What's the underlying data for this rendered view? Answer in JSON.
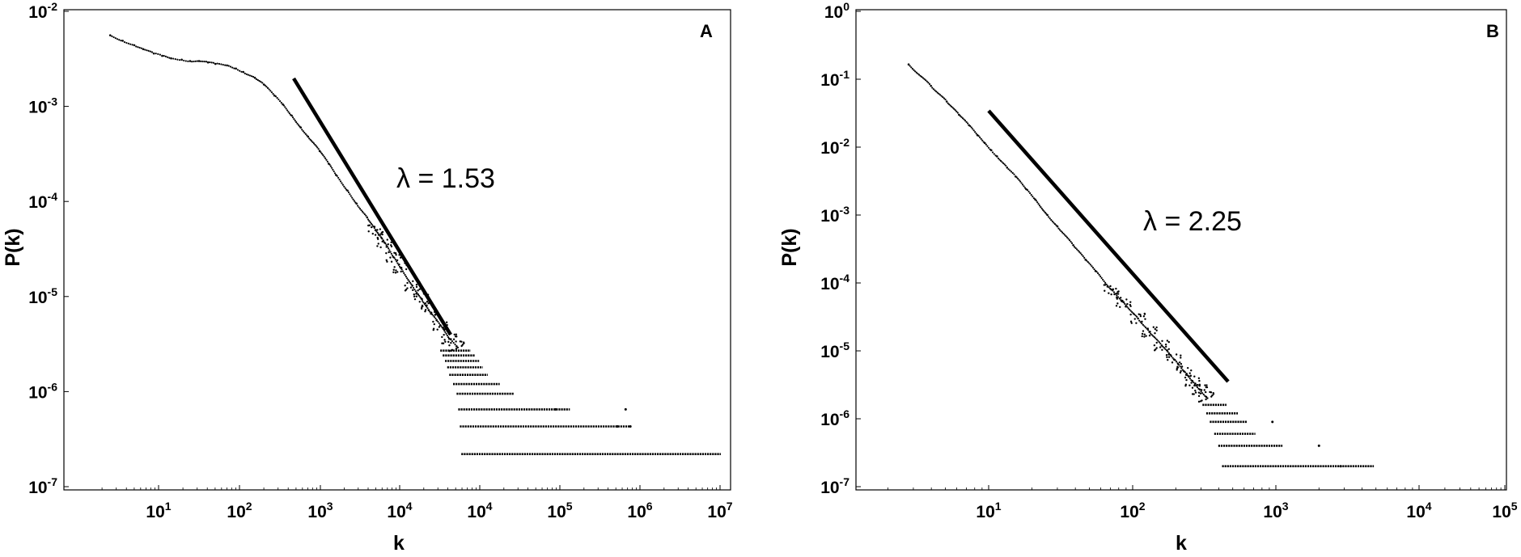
{
  "chart_data": [
    {
      "type": "scatter",
      "panel_label": "A",
      "xlabel": "k",
      "ylabel": "P(k)",
      "x_scale": "log",
      "y_scale": "log",
      "xlim": [
        1,
        10000000
      ],
      "ylim": [
        1e-07,
        0.01
      ],
      "x_ticks": [
        {
          "base": "10",
          "exp": "1"
        },
        {
          "base": "10",
          "exp": "2"
        },
        {
          "base": "10",
          "exp": "3"
        },
        {
          "base": "10",
          "exp": "4"
        },
        {
          "base": "10",
          "exp": "4"
        },
        {
          "base": "10",
          "exp": "5"
        },
        {
          "base": "10",
          "exp": "6"
        },
        {
          "base": "10",
          "exp": "7"
        }
      ],
      "y_ticks": [
        {
          "base": "10",
          "exp": "-7"
        },
        {
          "base": "10",
          "exp": "-6"
        },
        {
          "base": "10",
          "exp": "-5"
        },
        {
          "base": "10",
          "exp": "-4"
        },
        {
          "base": "10",
          "exp": "-3"
        },
        {
          "base": "10",
          "exp": "-2"
        }
      ],
      "annotation": "λ = 1.53",
      "fit_line": {
        "slope": -1.53,
        "x_range": [
          500,
          40000
        ]
      },
      "grid": false,
      "series": [
        {
          "points": [
            [
              2.2,
              0.0056
            ],
            [
              3,
              0.0049
            ],
            [
              4,
              0.0044
            ],
            [
              5,
              0.004
            ],
            [
              6.5,
              0.0036
            ],
            [
              8,
              0.0034
            ],
            [
              10,
              0.0032
            ],
            [
              13,
              0.0031
            ],
            [
              16,
              0.003
            ],
            [
              20,
              0.003
            ],
            [
              25,
              0.0029
            ],
            [
              30,
              0.0028
            ],
            [
              40,
              0.0027
            ],
            [
              50,
              0.0025
            ],
            [
              60,
              0.0023
            ],
            [
              80,
              0.002
            ],
            [
              100,
              0.0017
            ],
            [
              130,
              0.0013
            ],
            [
              160,
              0.00105
            ],
            [
              200,
              0.0008
            ],
            [
              250,
              0.0006
            ],
            [
              300,
              0.00048
            ],
            [
              400,
              0.00034
            ],
            [
              500,
              0.00025
            ],
            [
              600,
              0.00019
            ],
            [
              800,
              0.00013
            ],
            [
              1000,
              9.5e-05
            ],
            [
              1300,
              6.8e-05
            ],
            [
              1600,
              5e-05
            ],
            [
              2000,
              3.7e-05
            ],
            [
              2500,
              2.6e-05
            ],
            [
              3000,
              2e-05
            ],
            [
              4000,
              1.3e-05
            ],
            [
              5000,
              9.5e-06
            ],
            [
              6000,
              7.2e-06
            ],
            [
              8000,
              5e-06
            ],
            [
              10000,
              3.6e-06
            ],
            [
              12000,
              3e-06
            ]
          ],
          "levels": [
            {
              "y": 2.7e-06,
              "x_range": [
                8000,
                17000
              ]
            },
            {
              "y": 2.4e-06,
              "x_range": [
                8500,
                19000
              ]
            },
            {
              "y": 2.1e-06,
              "x_range": [
                9000,
                21000
              ]
            },
            {
              "y": 1.8e-06,
              "x_range": [
                9500,
                23000
              ]
            },
            {
              "y": 1.5e-06,
              "x_range": [
                10000,
                26000
              ]
            },
            {
              "y": 1.2e-06,
              "x_range": [
                11000,
                35000
              ]
            },
            {
              "y": 9.5e-07,
              "x_range": [
                12000,
                50000
              ]
            },
            {
              "y": 6.5e-07,
              "x_range": [
                12500,
                200000
              ]
            },
            {
              "y": 4.3e-07,
              "x_range": [
                13000,
                900000
              ]
            },
            {
              "y": 2.2e-07,
              "x_range": [
                13500,
                8500000
              ]
            }
          ],
          "outliers": [
            [
              140000,
              6.5e-07
            ],
            [
              800000,
              6.5e-07
            ],
            [
              650000,
              4.3e-07
            ],
            [
              900000,
              4.3e-07
            ]
          ]
        }
      ]
    },
    {
      "type": "scatter",
      "panel_label": "B",
      "xlabel": "k",
      "ylabel": "P(k)",
      "x_scale": "log",
      "y_scale": "log",
      "xlim": [
        1,
        100000
      ],
      "ylim": [
        1e-07,
        1
      ],
      "x_ticks": [
        {
          "base": "10",
          "exp": "1"
        },
        {
          "base": "10",
          "exp": "2"
        },
        {
          "base": "10",
          "exp": "3"
        },
        {
          "base": "10",
          "exp": "4"
        },
        {
          "base": "10",
          "exp": "5"
        }
      ],
      "y_ticks": [
        {
          "base": "10",
          "exp": "-7"
        },
        {
          "base": "10",
          "exp": "-6"
        },
        {
          "base": "10",
          "exp": "-5"
        },
        {
          "base": "10",
          "exp": "-4"
        },
        {
          "base": "10",
          "exp": "-3"
        },
        {
          "base": "10",
          "exp": "-2"
        },
        {
          "base": "10",
          "exp": "-1"
        },
        {
          "base": "10",
          "exp": "0"
        }
      ],
      "annotation": "λ = 2.25",
      "fit_line": {
        "slope": -2.25,
        "x_range": [
          11,
          750
        ]
      },
      "grid": false,
      "series": [
        {
          "points": [
            [
              2,
              0.165
            ],
            [
              3,
              0.08
            ],
            [
              4,
              0.047
            ],
            [
              5,
              0.03
            ],
            [
              6,
              0.021
            ],
            [
              7,
              0.015
            ],
            [
              8,
              0.0115
            ],
            [
              9,
              0.009
            ],
            [
              10,
              0.0073
            ],
            [
              12,
              0.005
            ],
            [
              14,
              0.0037
            ],
            [
              17,
              0.0024
            ],
            [
              20,
              0.0017
            ],
            [
              25,
              0.001
            ],
            [
              30,
              0.00068
            ],
            [
              40,
              0.00036
            ],
            [
              50,
              0.00022
            ],
            [
              60,
              0.00015
            ],
            [
              80,
              8e-05
            ],
            [
              100,
              5.2e-05
            ],
            [
              130,
              3e-05
            ],
            [
              160,
              1.9e-05
            ],
            [
              200,
              1.2e-05
            ],
            [
              250,
              7.5e-06
            ],
            [
              300,
              5e-06
            ],
            [
              350,
              3.6e-06
            ],
            [
              400,
              2.7e-06
            ],
            [
              450,
              2.1e-06
            ]
          ],
          "levels": [
            {
              "y": 1.6e-06,
              "x_range": [
                420,
                650
              ]
            },
            {
              "y": 1.2e-06,
              "x_range": [
                450,
                800
              ]
            },
            {
              "y": 9e-07,
              "x_range": [
                480,
                950
              ]
            },
            {
              "y": 6e-07,
              "x_range": [
                520,
                1100
              ]
            },
            {
              "y": 4e-07,
              "x_range": [
                560,
                1800
              ]
            },
            {
              "y": 2e-07,
              "x_range": [
                600,
                9500
              ]
            }
          ],
          "outliers": [
            [
              1500,
              9e-07
            ],
            [
              3500,
              4e-07
            ],
            [
              5200,
              2e-07
            ]
          ]
        }
      ]
    }
  ]
}
